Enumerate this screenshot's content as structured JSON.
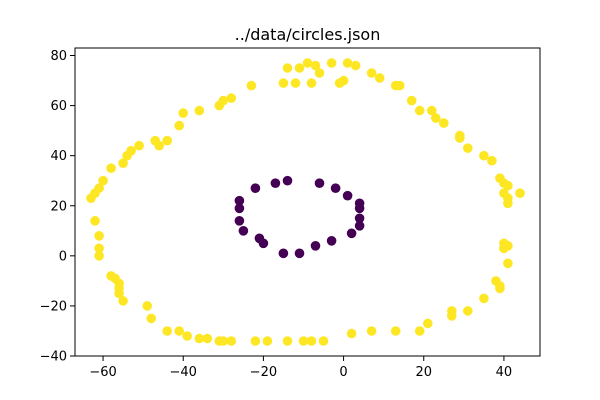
{
  "chart_data": {
    "type": "scatter",
    "title": "../data/circles.json",
    "xlabel": "",
    "ylabel": "",
    "xlim": [
      -67,
      49
    ],
    "ylim": [
      -40,
      83
    ],
    "xticks": [
      -60,
      -40,
      -20,
      0,
      20,
      40
    ],
    "yticks": [
      -40,
      -20,
      0,
      20,
      40,
      60,
      80
    ],
    "grid": false,
    "legend": "none",
    "colors": {
      "outer": "#fde725",
      "inner": "#440154"
    },
    "series": [
      {
        "color": "#fde725",
        "points": [
          [
            -14,
            75
          ],
          [
            -11,
            75
          ],
          [
            -9,
            77
          ],
          [
            -7,
            76
          ],
          [
            -6,
            73
          ],
          [
            -3,
            77
          ],
          [
            1,
            77
          ],
          [
            3,
            76
          ],
          [
            7,
            73
          ],
          [
            9,
            71
          ],
          [
            13,
            68
          ],
          [
            14,
            68
          ],
          [
            17,
            62
          ],
          [
            19,
            58
          ],
          [
            22,
            58
          ],
          [
            23,
            55
          ],
          [
            25,
            53
          ],
          [
            29,
            48
          ],
          [
            29,
            47
          ],
          [
            31,
            43
          ],
          [
            35,
            40
          ],
          [
            37,
            38
          ],
          [
            39,
            31
          ],
          [
            40,
            29
          ],
          [
            41,
            28
          ],
          [
            40,
            25
          ],
          [
            41,
            23
          ],
          [
            41,
            21
          ],
          [
            44,
            25
          ],
          [
            40,
            5
          ],
          [
            41,
            4
          ],
          [
            40,
            3
          ],
          [
            41,
            -3
          ],
          [
            38,
            -10
          ],
          [
            39,
            -12
          ],
          [
            39,
            -13
          ],
          [
            35,
            -17
          ],
          [
            31,
            -22
          ],
          [
            27,
            -22
          ],
          [
            27,
            -24
          ],
          [
            21,
            -27
          ],
          [
            19,
            -30
          ],
          [
            13,
            -30
          ],
          [
            7,
            -30
          ],
          [
            2,
            -31
          ],
          [
            -5,
            -34
          ],
          [
            -8,
            -34
          ],
          [
            -10,
            -34
          ],
          [
            -14,
            -34
          ],
          [
            -19,
            -34
          ],
          [
            -22,
            -34
          ],
          [
            -28,
            -34
          ],
          [
            -30,
            -34
          ],
          [
            -31,
            -34
          ],
          [
            -34,
            -33
          ],
          [
            -36,
            -33
          ],
          [
            -39,
            -32
          ],
          [
            -41,
            -30
          ],
          [
            -44,
            -30
          ],
          [
            -48,
            -25
          ],
          [
            -49,
            -20
          ],
          [
            -55,
            -18
          ],
          [
            -56,
            -15
          ],
          [
            -56,
            -13
          ],
          [
            -56,
            -11
          ],
          [
            -57,
            -9
          ],
          [
            -58,
            -8
          ],
          [
            -61,
            0
          ],
          [
            -61,
            3
          ],
          [
            -61,
            8
          ],
          [
            -62,
            14
          ],
          [
            -63,
            23
          ],
          [
            -62,
            25
          ],
          [
            -61,
            27
          ],
          [
            -60,
            30
          ],
          [
            -58,
            35
          ],
          [
            -55,
            37
          ],
          [
            -54,
            40
          ],
          [
            -53,
            42
          ],
          [
            -51,
            44
          ],
          [
            -47,
            46
          ],
          [
            -46,
            44
          ],
          [
            -44,
            46
          ],
          [
            -41,
            52
          ],
          [
            -40,
            57
          ],
          [
            -36,
            58
          ],
          [
            -31,
            60
          ],
          [
            -30,
            62
          ],
          [
            -28,
            63
          ],
          [
            -23,
            68
          ],
          [
            -12,
            69
          ],
          [
            -8,
            69
          ],
          [
            -15,
            69
          ],
          [
            0,
            70
          ],
          [
            -1,
            69
          ]
        ]
      },
      {
        "color": "#440154",
        "points": [
          [
            -14,
            30
          ],
          [
            -17,
            29
          ],
          [
            -22,
            27
          ],
          [
            -26,
            22
          ],
          [
            -26,
            19
          ],
          [
            -26,
            14
          ],
          [
            -25,
            10
          ],
          [
            -21,
            7
          ],
          [
            -20,
            5
          ],
          [
            -15,
            1
          ],
          [
            -11,
            1
          ],
          [
            -7,
            4
          ],
          [
            -3,
            6
          ],
          [
            2,
            9
          ],
          [
            4,
            12
          ],
          [
            4,
            15
          ],
          [
            4,
            19
          ],
          [
            4,
            21
          ],
          [
            1,
            24
          ],
          [
            -2,
            27
          ],
          [
            -6,
            29
          ]
        ]
      }
    ]
  }
}
